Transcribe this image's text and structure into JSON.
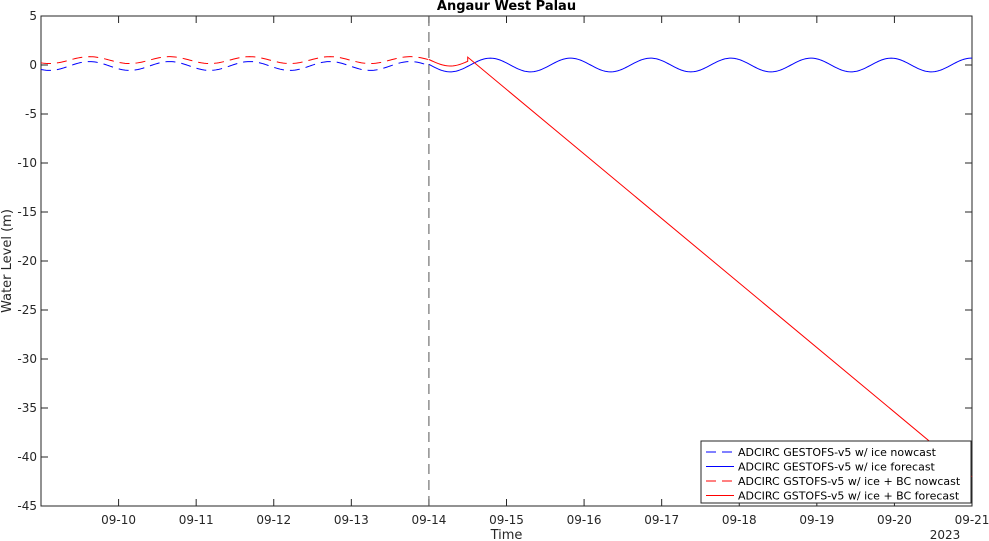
{
  "chart_data": {
    "type": "line",
    "title": "Angaur West Palau",
    "xlabel": "Time",
    "ylabel": "Water Level (m)",
    "year_label": "2023",
    "xlim": [
      "2023-09-09",
      "2023-09-21"
    ],
    "ylim": [
      -45,
      5
    ],
    "x_ticks": [
      "09-10",
      "09-11",
      "09-12",
      "09-13",
      "09-14",
      "09-15",
      "09-16",
      "09-17",
      "09-18",
      "09-19",
      "09-20",
      "09-21"
    ],
    "y_ticks": [
      5,
      0,
      -5,
      -10,
      -15,
      -20,
      -25,
      -30,
      -35,
      -40,
      -45
    ],
    "nowcast_forecast_split": "2023-09-14",
    "legend_position": "bottom-right",
    "series": [
      {
        "name": "ADCIRC GESTOFS-v5 w/ ice nowcast",
        "color": "#0000ff",
        "dash": "dashed",
        "tide": {
          "mean": -0.1,
          "amplitude": 0.45,
          "period_hours": 24.8,
          "peak": "2023-09-09 15:00"
        },
        "x_range": [
          "2023-09-09",
          "2023-09-14"
        ]
      },
      {
        "name": "ADCIRC GESTOFS-v5 w/ ice forecast",
        "color": "#0000ff",
        "dash": "solid",
        "tide": {
          "mean": 0.0,
          "amplitude": 0.7,
          "period_hours": 24.8,
          "peak": "2023-09-09 15:00"
        },
        "x_range": [
          "2023-09-14",
          "2023-09-21"
        ]
      },
      {
        "name": "ADCIRC GSTOFS-v5 w/ ice + BC nowcast",
        "color": "#ff0000",
        "dash": "dashed",
        "tide": {
          "mean": 0.5,
          "amplitude": 0.35,
          "period_hours": 24.8,
          "peak": "2023-09-09 15:00"
        },
        "x_range": [
          "2023-09-09",
          "2023-09-14"
        ]
      },
      {
        "name": "ADCIRC GSTOFS-v5 w/ ice + BC forecast",
        "color": "#ff0000",
        "dash": "solid",
        "tide": {
          "mean": 0.5,
          "amplitude": 0.6,
          "period_hours": 24.8,
          "peak": "2023-09-09 15:00"
        },
        "x_range": [
          "2023-09-14",
          "2023-09-14 12:00"
        ],
        "then_linear": {
          "from": [
            "2023-09-14 12:00",
            0.8
          ],
          "to": [
            "2023-09-21",
            -42.0
          ]
        }
      }
    ]
  }
}
